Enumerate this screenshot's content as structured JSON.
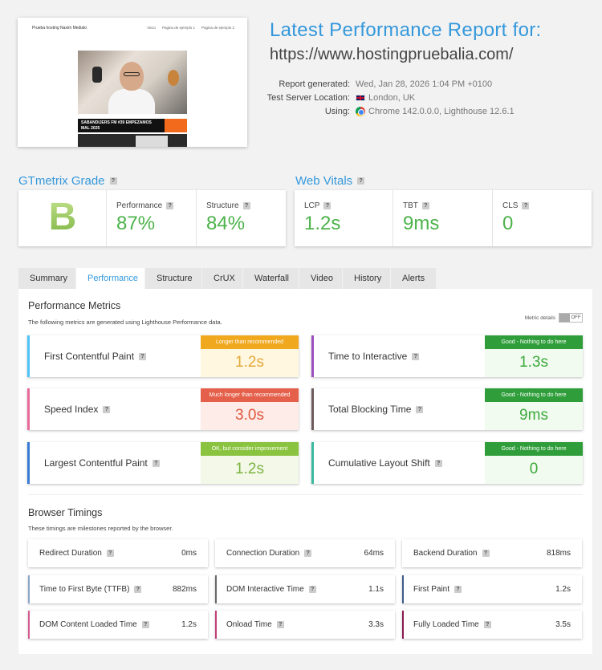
{
  "thumbnail": {
    "site_logo": "Prueba hosting Naxim Medialo",
    "nav": [
      "Inicio",
      "Pagina de ejemplo 1",
      "Pagina de ejemplo 2"
    ],
    "banner_text": "SABANDIJERS FM #39 EMPEZAMOS MAL 2025"
  },
  "header": {
    "title": "Latest Performance Report for:",
    "url": "https://www.hostingpruebalia.com/",
    "meta": [
      {
        "key": "Report generated:",
        "value": "Wed, Jan 28, 2026 1:04 PM +0100",
        "icon": ""
      },
      {
        "key": "Test Server Location:",
        "value": "London, UK",
        "icon": "uk-flag-icon"
      },
      {
        "key": "Using:",
        "value": "Chrome 142.0.0.0, Lighthouse 12.6.1",
        "icon": "chrome-icon"
      }
    ]
  },
  "gtmetrix": {
    "title": "GTmetrix Grade",
    "grade": "B",
    "performance_label": "Performance",
    "performance": "87%",
    "structure_label": "Structure",
    "structure": "84%"
  },
  "web_vitals": {
    "title": "Web Vitals",
    "items": [
      {
        "label": "LCP",
        "value": "1.2s"
      },
      {
        "label": "TBT",
        "value": "9ms"
      },
      {
        "label": "CLS",
        "value": "0"
      }
    ]
  },
  "tabs": [
    "Summary",
    "Performance",
    "Structure",
    "CrUX",
    "Waterfall",
    "Video",
    "History",
    "Alerts"
  ],
  "active_tab": "Performance",
  "performance_metrics": {
    "title": "Performance Metrics",
    "subtitle": "The following metrics are generated using Lighthouse Performance data.",
    "details_label": "Metric details",
    "toggle_label": "OFF",
    "items": [
      {
        "name": "First Contentful Paint",
        "badge": "Longer than recommended",
        "value": "1.2s",
        "accent": "#4fc3f7",
        "badge_color": "#f0a81e",
        "value_color": "#e3a93b",
        "value_bg": "#fff7df"
      },
      {
        "name": "Time to Interactive",
        "badge": "Good - Nothing to do here",
        "value": "1.3s",
        "accent": "#9c4fbd",
        "badge_color": "#2f9e3a",
        "value_color": "#3daa3d",
        "value_bg": "#f1fbef"
      },
      {
        "name": "Speed Index",
        "badge": "Much longer than recommended",
        "value": "3.0s",
        "accent": "#e86a9a",
        "badge_color": "#e5604b",
        "value_color": "#e0563f",
        "value_bg": "#fdece8"
      },
      {
        "name": "Total Blocking Time",
        "badge": "Good - Nothing to do here",
        "value": "9ms",
        "accent": "#6d5b5b",
        "badge_color": "#2f9e3a",
        "value_color": "#3daa3d",
        "value_bg": "#f1fbef"
      },
      {
        "name": "Largest Contentful Paint",
        "badge": "OK, but consider improvement",
        "value": "1.2s",
        "accent": "#3a7bd5",
        "badge_color": "#8ac33f",
        "value_color": "#7cb342",
        "value_bg": "#f3f8e8"
      },
      {
        "name": "Cumulative Layout Shift",
        "badge": "Good - Nothing to do here",
        "value": "0",
        "accent": "#3bb8a0",
        "badge_color": "#2f9e3a",
        "value_color": "#3daa3d",
        "value_bg": "#f1fbef"
      }
    ]
  },
  "browser_timings": {
    "title": "Browser Timings",
    "subtitle": "These timings are milestones reported by the browser.",
    "items": [
      {
        "name": "Redirect Duration",
        "value": "0ms",
        "accent": "#ffffff"
      },
      {
        "name": "Connection Duration",
        "value": "64ms",
        "accent": "#ffffff"
      },
      {
        "name": "Backend Duration",
        "value": "818ms",
        "accent": "#ffffff"
      },
      {
        "name": "Time to First Byte (TTFB)",
        "value": "882ms",
        "accent": "#8aa6c8"
      },
      {
        "name": "DOM Interactive Time",
        "value": "1.1s",
        "accent": "#6a6a6a"
      },
      {
        "name": "First Paint",
        "value": "1.2s",
        "accent": "#3b5b8a"
      },
      {
        "name": "DOM Content Loaded Time",
        "value": "1.2s",
        "accent": "#d65a8f"
      },
      {
        "name": "Onload Time",
        "value": "3.3s",
        "accent": "#c13f7a"
      },
      {
        "name": "Fully Loaded Time",
        "value": "3.5s",
        "accent": "#8a1b4e"
      }
    ]
  }
}
